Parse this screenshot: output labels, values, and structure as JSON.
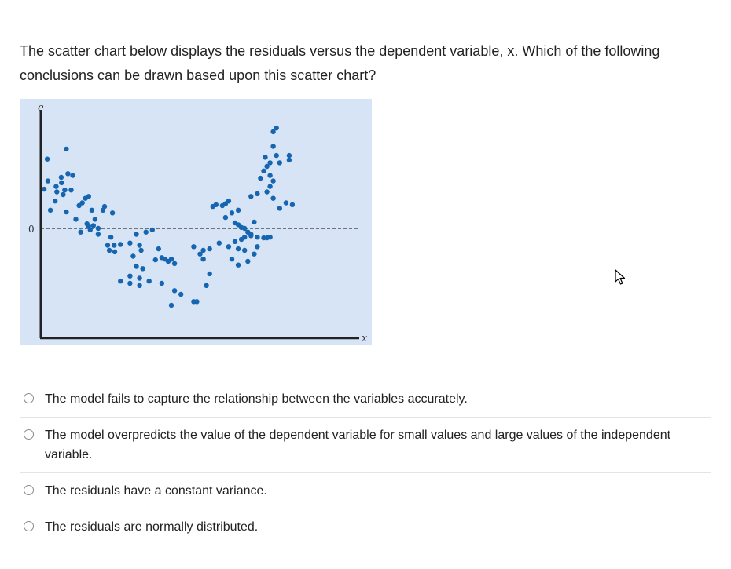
{
  "question": {
    "text": "The scatter chart below displays the residuals versus the dependent variable, x. Which of the following conclusions can be drawn based upon this scatter chart?"
  },
  "chart_data": {
    "type": "scatter",
    "xlabel": "x",
    "ylabel": "e",
    "y_tick_labels": [
      "0"
    ],
    "x_range": [
      0,
      100
    ],
    "y_range": [
      -1.5,
      1.3
    ],
    "reference_line": {
      "y": 0,
      "style": "dashed"
    },
    "grid": false,
    "legend": "none",
    "background_color": "#d6e4f5",
    "point_color": "#1565b0",
    "points": [
      [
        1,
        0.43
      ],
      [
        2,
        0.76
      ],
      [
        2.2,
        0.52
      ],
      [
        8,
        0.87
      ],
      [
        3,
        0.2
      ],
      [
        4.5,
        0.3
      ],
      [
        5,
        0.4
      ],
      [
        4.8,
        0.46
      ],
      [
        6.5,
        0.5
      ],
      [
        6.4,
        0.56
      ],
      [
        7,
        0.37
      ],
      [
        7.5,
        0.42
      ],
      [
        8.5,
        0.6
      ],
      [
        10,
        0.58
      ],
      [
        9.5,
        0.42
      ],
      [
        8,
        0.18
      ],
      [
        11,
        0.1
      ],
      [
        12,
        0.25
      ],
      [
        13,
        0.28
      ],
      [
        14,
        0.33
      ],
      [
        15,
        0.35
      ],
      [
        16,
        0.2
      ],
      [
        14.5,
        0.05
      ],
      [
        12.5,
        -0.05
      ],
      [
        15,
        0.02
      ],
      [
        15.5,
        -0.02
      ],
      [
        17,
        0.1
      ],
      [
        16.5,
        0.03
      ],
      [
        18,
        0.0
      ],
      [
        18,
        -0.08
      ],
      [
        20,
        0.24
      ],
      [
        19.5,
        0.2
      ],
      [
        22.5,
        0.17
      ],
      [
        22,
        -0.12
      ],
      [
        21,
        -0.23
      ],
      [
        23,
        -0.23
      ],
      [
        23.2,
        -0.32
      ],
      [
        25,
        -0.22
      ],
      [
        28,
        -0.2
      ],
      [
        29,
        -0.38
      ],
      [
        30,
        -0.08
      ],
      [
        31,
        -0.23
      ],
      [
        31.5,
        -0.3
      ],
      [
        33,
        -0.05
      ],
      [
        35,
        -0.02
      ],
      [
        37,
        -0.28
      ],
      [
        21.5,
        -0.3
      ],
      [
        28,
        -0.65
      ],
      [
        30,
        -0.52
      ],
      [
        31,
        -0.68
      ],
      [
        32,
        -0.55
      ],
      [
        34,
        -0.72
      ],
      [
        36,
        -0.43
      ],
      [
        38,
        -0.4
      ],
      [
        39,
        -0.42
      ],
      [
        40,
        -0.45
      ],
      [
        41,
        -0.42
      ],
      [
        42,
        -0.48
      ],
      [
        25,
        -0.72
      ],
      [
        28,
        -0.75
      ],
      [
        31,
        -0.78
      ],
      [
        38,
        -0.75
      ],
      [
        42,
        -0.85
      ],
      [
        44,
        -0.9
      ],
      [
        41,
        -1.05
      ],
      [
        48,
        -1.0
      ],
      [
        49,
        -1.0
      ],
      [
        52,
        -0.78
      ],
      [
        53,
        -0.62
      ],
      [
        48,
        -0.25
      ],
      [
        50,
        -0.35
      ],
      [
        51,
        -0.3
      ],
      [
        53,
        -0.28
      ],
      [
        51,
        -0.42
      ],
      [
        56,
        -0.2
      ],
      [
        59,
        -0.25
      ],
      [
        61,
        -0.18
      ],
      [
        62,
        -0.28
      ],
      [
        64,
        -0.3
      ],
      [
        60,
        -0.42
      ],
      [
        62,
        -0.5
      ],
      [
        65,
        -0.45
      ],
      [
        67,
        -0.35
      ],
      [
        68,
        -0.25
      ],
      [
        63,
        -0.15
      ],
      [
        64,
        -0.12
      ],
      [
        66,
        -0.1
      ],
      [
        68,
        -0.12
      ],
      [
        70,
        -0.13
      ],
      [
        71,
        -0.13
      ],
      [
        72,
        -0.12
      ],
      [
        54,
        0.24
      ],
      [
        55,
        0.26
      ],
      [
        57,
        0.25
      ],
      [
        58,
        0.27
      ],
      [
        59,
        0.3
      ],
      [
        58,
        0.12
      ],
      [
        60,
        0.17
      ],
      [
        61,
        0.06
      ],
      [
        62,
        0.04
      ],
      [
        63,
        0.01
      ],
      [
        64,
        0.0
      ],
      [
        65,
        -0.05
      ],
      [
        66,
        -0.08
      ],
      [
        67,
        0.07
      ],
      [
        62,
        0.2
      ],
      [
        66,
        0.35
      ],
      [
        68,
        0.38
      ],
      [
        69,
        0.55
      ],
      [
        70,
        0.63
      ],
      [
        70.5,
        0.78
      ],
      [
        71,
        0.68
      ],
      [
        72,
        0.72
      ],
      [
        73,
        0.9
      ],
      [
        72,
        0.58
      ],
      [
        71,
        0.4
      ],
      [
        72,
        0.46
      ],
      [
        73,
        0.52
      ],
      [
        74,
        0.8
      ],
      [
        75,
        0.72
      ],
      [
        78,
        0.8
      ],
      [
        78,
        0.75
      ],
      [
        73,
        0.33
      ],
      [
        75,
        0.22
      ],
      [
        77,
        0.28
      ],
      [
        79,
        0.26
      ],
      [
        73,
        1.06
      ],
      [
        74,
        1.1
      ]
    ]
  },
  "options": [
    {
      "label": "The model fails to capture the relationship between the variables accurately."
    },
    {
      "label": "The model overpredicts the value of the dependent variable for small values and large values of the independent variable."
    },
    {
      "label": "The residuals have a constant variance."
    },
    {
      "label": "The residuals are normally distributed."
    }
  ],
  "cursor": {
    "icon": "mouse-pointer-icon"
  }
}
